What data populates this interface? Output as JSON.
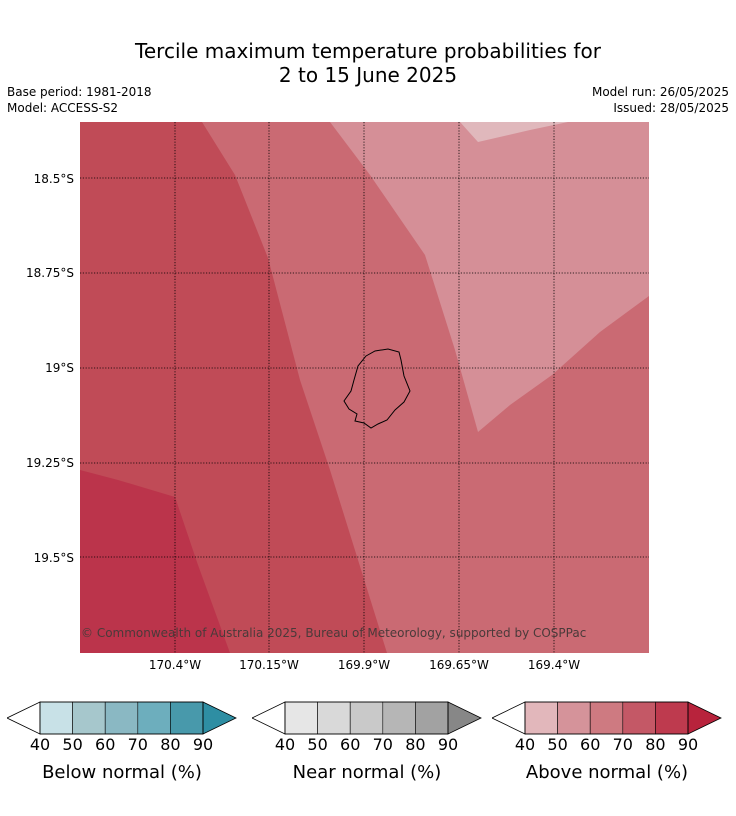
{
  "title_line1": "Tercile maximum temperature probabilities for",
  "title_line2": "2 to 15 June 2025",
  "base_period": "Base period: 1981-2018",
  "model": "Model: ACCESS-S2",
  "model_run": "Model run: 26/05/2025",
  "issued": "Issued: 28/05/2025",
  "map": {
    "lat_ticks": [
      "18.5°S",
      "18.75°S",
      "19°S",
      "19.25°S",
      "19.5°S"
    ],
    "lon_ticks": [
      "170.4°W",
      "170.15°W",
      "169.9°W",
      "169.65°W",
      "169.4°W"
    ],
    "copyright": "© Commonwealth of Australia 2025, Bureau of Meteorology, supported by COSPPac",
    "colors": {
      "above_40_50": "#e0b8bc",
      "above_50_60": "#d58f97",
      "above_60_70": "#ca6a73",
      "above_70_80": "#c04b57",
      "above_80_90": "#bb344b"
    }
  },
  "legend": {
    "below": {
      "label": "Below normal (%)",
      "ticks": [
        "40",
        "50",
        "60",
        "70",
        "80",
        "90"
      ],
      "colors": [
        "#c8e1e7",
        "#a6c7cc",
        "#8ab8c3",
        "#6daebd",
        "#4899ab",
        "#2e8ea3"
      ]
    },
    "near": {
      "label": "Near normal (%)",
      "ticks": [
        "40",
        "50",
        "60",
        "70",
        "80",
        "90"
      ],
      "colors": [
        "#e6e6e6",
        "#d9d9d9",
        "#c9c9c9",
        "#b6b6b6",
        "#a2a2a2",
        "#878787"
      ]
    },
    "above": {
      "label": "Above normal (%)",
      "ticks": [
        "40",
        "50",
        "60",
        "70",
        "80",
        "90"
      ],
      "colors": [
        "#e2b7bb",
        "#d5939a",
        "#ce7a81",
        "#c45866",
        "#be3a4e",
        "#b8233c"
      ]
    }
  }
}
